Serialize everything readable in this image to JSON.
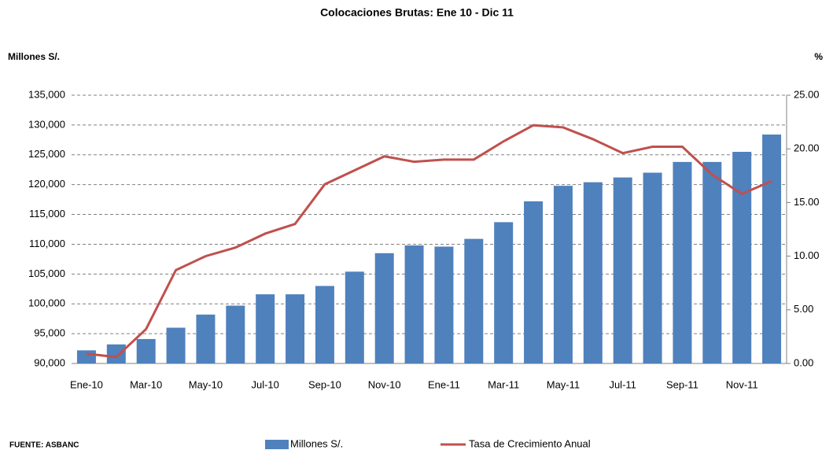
{
  "chart_data": {
    "type": "bar-line",
    "title": "Colocaciones Brutas: Ene 10 - Dic 11",
    "y_label": "Millones S/.",
    "y2_label": "%",
    "source": "FUENTE: ASBANC",
    "categories": [
      "Ene-10",
      null,
      "Mar-10",
      null,
      "May-10",
      null,
      "Jul-10",
      null,
      "Sep-10",
      null,
      "Nov-10",
      null,
      "Ene-11",
      null,
      "Mar-11",
      null,
      "May-11",
      null,
      "Jul-11",
      null,
      "Sep-11",
      null,
      "Nov-11",
      null
    ],
    "series": [
      {
        "name": "Millones S/.",
        "type": "bar",
        "color": "#4f81bd",
        "values": [
          92200,
          93200,
          94100,
          96000,
          98200,
          99700,
          101600,
          101600,
          103000,
          105400,
          108500,
          109800,
          109600,
          110900,
          113700,
          117200,
          119800,
          120400,
          121200,
          122000,
          123800,
          123800,
          125500,
          128400
        ]
      },
      {
        "name": "Tasa de Crecimiento Anual",
        "type": "line",
        "axis": "y2",
        "color": "#c0504d",
        "values": [
          0.9,
          0.6,
          3.2,
          8.7,
          10.0,
          10.8,
          12.1,
          13.0,
          16.7,
          18.0,
          19.3,
          18.8,
          19.0,
          19.0,
          20.7,
          22.2,
          22.0,
          20.9,
          19.6,
          20.2,
          20.2,
          17.6,
          15.8,
          17.0
        ]
      }
    ],
    "ylim": [
      90000,
      135000
    ],
    "yticks": [
      {
        "value": 90000,
        "label": "90,000"
      },
      {
        "value": 95000,
        "label": "95,000"
      },
      {
        "value": 100000,
        "label": "100,000"
      },
      {
        "value": 105000,
        "label": "105,000"
      },
      {
        "value": 110000,
        "label": "110,000"
      },
      {
        "value": 115000,
        "label": "115,000"
      },
      {
        "value": 120000,
        "label": "120,000"
      },
      {
        "value": 125000,
        "label": "125,000"
      },
      {
        "value": 130000,
        "label": "130,000"
      },
      {
        "value": 135000,
        "label": "135,000"
      }
    ],
    "y2lim": [
      0,
      25
    ],
    "y2ticks": [
      {
        "value": 0,
        "label": "0.00"
      },
      {
        "value": 5,
        "label": "5.00"
      },
      {
        "value": 10,
        "label": "10.00"
      },
      {
        "value": 15,
        "label": "15.00"
      },
      {
        "value": 20,
        "label": "20.00"
      },
      {
        "value": 25,
        "label": "25.00"
      }
    ],
    "grid": true
  }
}
